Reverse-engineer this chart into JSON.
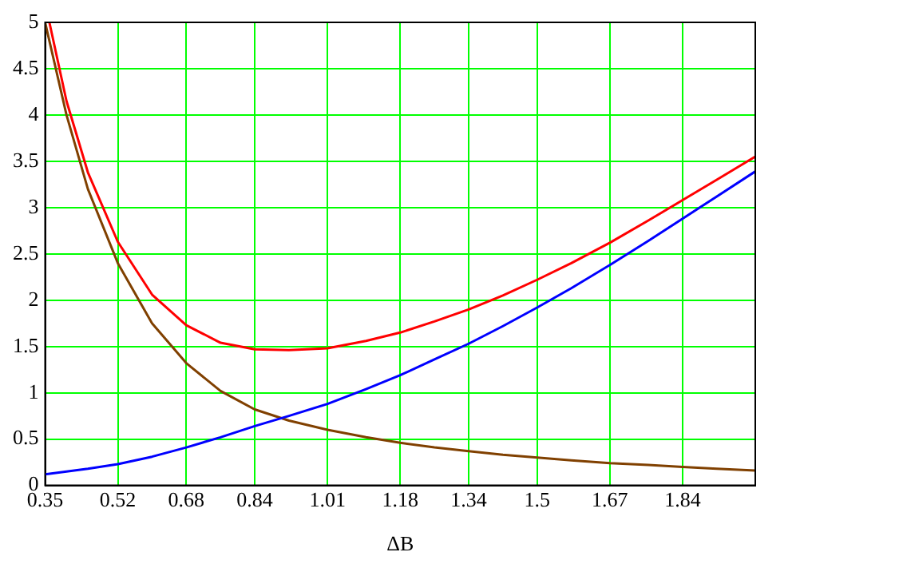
{
  "chart_data": {
    "type": "line",
    "xlabel": "ΔB",
    "x": [
      0.35,
      0.4,
      0.45,
      0.52,
      0.6,
      0.68,
      0.76,
      0.84,
      0.92,
      1.01,
      1.1,
      1.18,
      1.26,
      1.34,
      1.42,
      1.5,
      1.58,
      1.67,
      1.76,
      1.84,
      1.92,
      2.01
    ],
    "series": [
      {
        "color": "#0000ff",
        "values": [
          0.12,
          0.15,
          0.18,
          0.23,
          0.31,
          0.41,
          0.52,
          0.64,
          0.75,
          0.88,
          1.04,
          1.19,
          1.36,
          1.53,
          1.72,
          1.92,
          2.13,
          2.38,
          2.64,
          2.88,
          3.12,
          3.39
        ]
      },
      {
        "color": "#ff0000",
        "x": [
          0.36,
          0.4,
          0.45,
          0.52,
          0.6,
          0.68,
          0.76,
          0.84,
          0.92,
          1.01,
          1.1,
          1.18,
          1.26,
          1.34,
          1.42,
          1.5,
          1.58,
          1.67,
          1.76,
          1.84,
          1.92,
          2.01
        ],
        "values": [
          5.0,
          4.15,
          3.38,
          2.63,
          2.06,
          1.73,
          1.54,
          1.47,
          1.46,
          1.48,
          1.56,
          1.65,
          1.77,
          1.9,
          2.05,
          2.22,
          2.4,
          2.62,
          2.86,
          3.08,
          3.3,
          3.55
        ]
      },
      {
        "color": "#804000",
        "values": [
          5.0,
          4.0,
          3.2,
          2.4,
          1.75,
          1.32,
          1.02,
          0.82,
          0.7,
          0.6,
          0.52,
          0.46,
          0.41,
          0.37,
          0.33,
          0.3,
          0.27,
          0.24,
          0.22,
          0.2,
          0.18,
          0.16
        ]
      }
    ],
    "xlim": [
      0.35,
      2.01
    ],
    "xticks": [
      0.35,
      0.52,
      0.68,
      0.84,
      1.01,
      1.18,
      1.34,
      1.5,
      1.67,
      1.84
    ],
    "ylim": [
      0,
      5
    ],
    "yticks": [
      0,
      0.5,
      1,
      1.5,
      2,
      2.5,
      3,
      3.5,
      4,
      4.5,
      5
    ],
    "grid": true,
    "legend": false,
    "marker": "none",
    "line_style": "solid"
  }
}
